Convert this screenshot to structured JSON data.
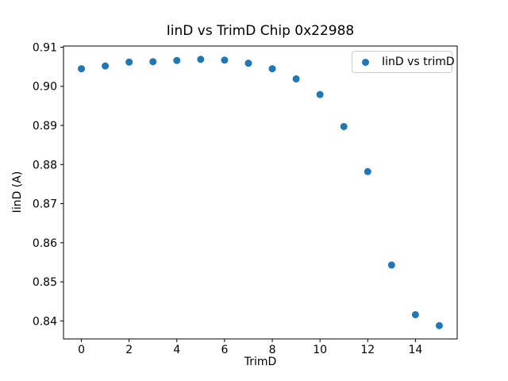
{
  "chart_data": {
    "type": "scatter",
    "title": "IinD vs TrimD Chip 0x22988",
    "xlabel": "TrimD",
    "ylabel": "IinD (A)",
    "legend_label": "IinD vs trimD",
    "legend_position": "upper right",
    "marker_color": "#1f77b4",
    "axis_color": "#000000",
    "grid": false,
    "x": [
      0,
      1,
      2,
      3,
      4,
      5,
      6,
      7,
      8,
      9,
      10,
      11,
      12,
      13,
      14,
      15
    ],
    "y": [
      0.9045,
      0.9052,
      0.9062,
      0.9063,
      0.9066,
      0.9069,
      0.9067,
      0.9059,
      0.9045,
      0.9019,
      0.8979,
      0.8897,
      0.8782,
      0.8543,
      0.8416,
      0.8388
    ],
    "xlim": [
      -0.75,
      15.75
    ],
    "ylim": [
      0.8354,
      0.9103
    ],
    "xticks": [
      0,
      2,
      4,
      6,
      8,
      10,
      12,
      14
    ],
    "yticks": [
      0.84,
      0.85,
      0.86,
      0.87,
      0.88,
      0.89,
      0.9,
      0.91
    ]
  }
}
